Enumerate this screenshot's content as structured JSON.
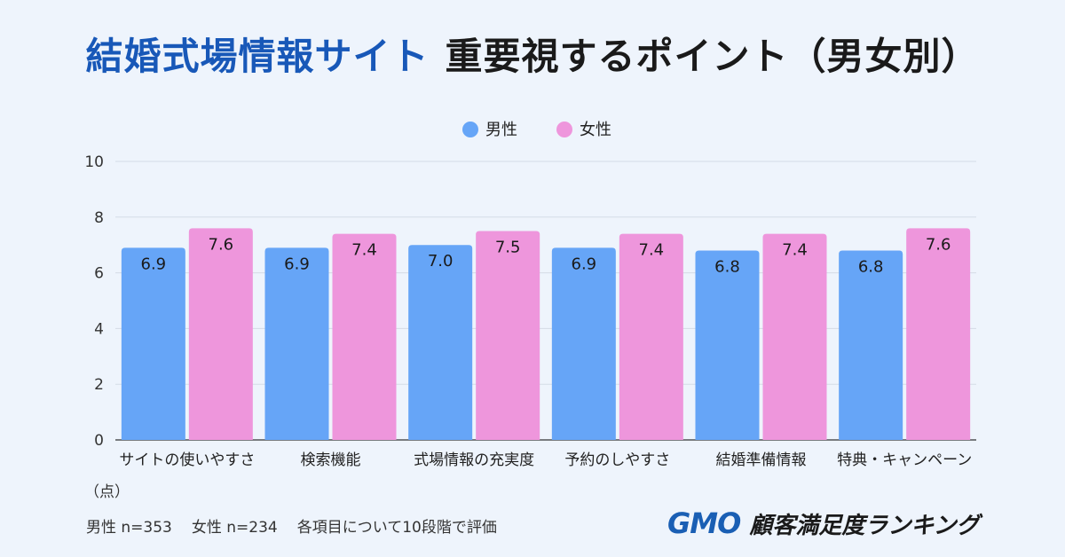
{
  "title": {
    "part1": "結婚式場情報サイト",
    "part2": "重要視するポイント（男女別）"
  },
  "colors": {
    "male": "#66a5f7",
    "female": "#ee96dc",
    "title_blue": "#1858b8",
    "brand_blue": "#1a5fb4"
  },
  "footer": {
    "unit": "（点）",
    "male_n": "男性 n=353",
    "female_n": "女性 n=234",
    "note": "各項目について10段階で評価"
  },
  "brand": {
    "gmo": "GMO",
    "ranking": "顧客満足度ランキング"
  },
  "chart_data": {
    "type": "bar",
    "categories": [
      "サイトの使いやすさ",
      "検索機能",
      "式場情報の充実度",
      "予約のしやすさ",
      "結婚準備情報",
      "特典・キャンペーン"
    ],
    "series": [
      {
        "name": "男性",
        "values": [
          6.9,
          6.9,
          7.0,
          6.9,
          6.8,
          6.8
        ]
      },
      {
        "name": "女性",
        "values": [
          7.6,
          7.4,
          7.5,
          7.4,
          7.4,
          7.6
        ]
      }
    ],
    "value_labels": [
      [
        "6.9",
        "6.9",
        "7.0",
        "6.9",
        "6.8",
        "6.8"
      ],
      [
        "7.6",
        "7.4",
        "7.5",
        "7.4",
        "7.4",
        "7.6"
      ]
    ],
    "ylim": [
      0,
      10
    ],
    "yticks": [
      "0",
      "2",
      "4",
      "6",
      "8",
      "10"
    ],
    "legend_position": "top-center",
    "grid": true
  }
}
